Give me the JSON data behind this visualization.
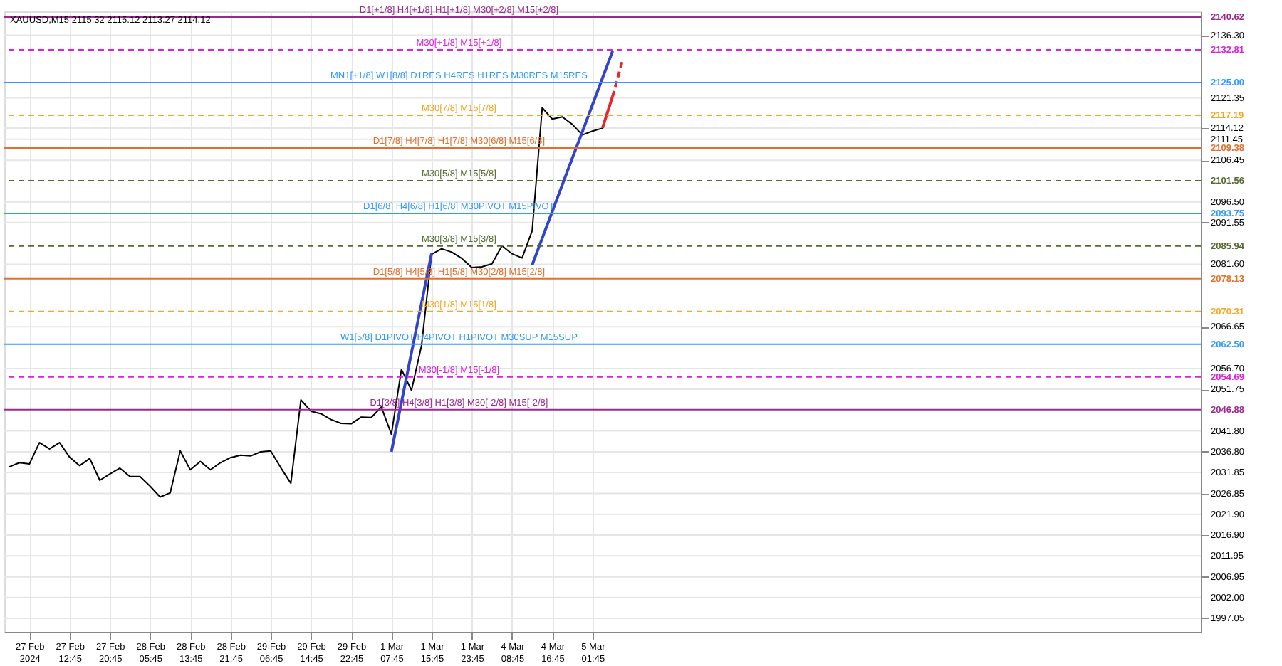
{
  "chart_data": {
    "type": "line",
    "title": "XAUUSD,M15  2115.32 2115.12 2113.27 2114.12",
    "categories": [
      null,
      null,
      "27 Feb 2024",
      null,
      null,
      null,
      "27 Feb 12:45",
      null,
      null,
      null,
      "27 Feb 20:45",
      null,
      null,
      null,
      "28 Feb 05:45",
      null,
      null,
      null,
      "28 Feb 13:45",
      null,
      null,
      null,
      "28 Feb 21:45",
      null,
      null,
      null,
      "29 Feb 06:45",
      null,
      null,
      null,
      "29 Feb 14:45",
      null,
      null,
      null,
      "29 Feb 22:45",
      null,
      null,
      null,
      "1 Mar 07:45",
      null,
      null,
      null,
      "1 Mar 15:45",
      null,
      null,
      null,
      "1 Mar 23:45",
      null,
      null,
      null,
      "4 Mar 08:45",
      null,
      null,
      null,
      "4 Mar 16:45",
      null,
      null,
      null,
      "5 Mar 01:45",
      null,
      null,
      null,
      null,
      null,
      null,
      null,
      null,
      null,
      null,
      null,
      null,
      null,
      null,
      null,
      null,
      null,
      null,
      null,
      null,
      null,
      null,
      null,
      null,
      null,
      null,
      null,
      null,
      null,
      null,
      null,
      null,
      null,
      null,
      null,
      null,
      null,
      null,
      null,
      null,
      null,
      null,
      null,
      null,
      null,
      null,
      null,
      null,
      null,
      null,
      null,
      null,
      null,
      null,
      null,
      null,
      null,
      null,
      null,
      null
    ],
    "ylim": [
      1993.8,
      2142.0
    ],
    "annotations": [
      "2140.62",
      "2132.81",
      "2125.00",
      "2117.19",
      "2109.38",
      "2101.56",
      "2093.75",
      "2085.94",
      "2078.13",
      "2070.31",
      "2062.50",
      "2054.69",
      "2046.88"
    ],
    "yticks": [
      {
        "value": 2136.3,
        "label": "2136.30"
      },
      2121.35,
      {
        "value": 2114.12,
        "label": "2114.12"
      },
      2111.45,
      2106.45,
      {
        "value": 2096.5,
        "label": "2096.50"
      },
      2091.55,
      {
        "value": 2081.6,
        "label": "2081.60"
      },
      2066.65,
      {
        "value": 2056.7,
        "label": "2056.70"
      },
      2051.75,
      {
        "value": 2041.8,
        "label": "2041.80"
      },
      {
        "value": 2036.8,
        "label": "2036.80"
      },
      2031.85,
      2026.85,
      {
        "value": 2021.9,
        "label": "2021.90"
      },
      {
        "value": 2016.9,
        "label": "2016.90"
      },
      2011.95,
      2006.95,
      {
        "value": 2002,
        "label": "2002.00"
      },
      1997.05
    ],
    "grid": true,
    "series": [
      {
        "color": "#000000",
        "values": [
          2033.2,
          2034.2,
          2033.9,
          2039.0,
          2037.5,
          2039.0,
          2035.5,
          2033.5,
          2035.2,
          2030.0,
          2031.5,
          2032.9,
          2030.9,
          2030.9,
          2028.6,
          2026.0,
          2027.0,
          2037.0,
          2032.5,
          2034.5,
          2032.5,
          2034.2,
          2035.4,
          2036.0,
          2035.8,
          2036.8,
          2037.0,
          2033.0,
          2029.3,
          2049.2,
          2046.5,
          2045.9,
          2044.5,
          2043.6,
          2043.5,
          2045.1,
          2045.0,
          2047.5,
          2041.0,
          2056.5,
          2051.5,
          2062.2,
          2084.0,
          2085.3,
          2084.5,
          2083.0,
          2080.8,
          2081.0,
          2081.7,
          2086.0,
          2084.1,
          2083.1,
          2089.6,
          2119.0,
          2116.3,
          2116.8,
          2115.0,
          2112.5,
          2113.4,
          2114.1,
          null,
          null,
          null,
          null,
          null,
          null,
          null,
          null,
          null,
          null,
          null,
          null,
          null,
          null,
          null,
          null,
          null,
          null,
          null,
          null,
          null,
          null,
          null,
          null,
          null,
          null,
          null,
          null,
          null,
          null,
          null,
          null,
          null,
          null,
          null,
          null,
          null,
          null,
          null,
          null,
          null,
          null,
          null,
          null,
          null,
          null,
          null,
          null,
          null,
          null,
          null,
          null,
          null,
          null,
          null,
          null,
          null,
          null,
          null
        ]
      },
      {
        "color": "#3344cc",
        "values": [
          null,
          null,
          null,
          null,
          null,
          null,
          null,
          null,
          null,
          null,
          null,
          null,
          null,
          null,
          null,
          null,
          null,
          null,
          null,
          null,
          null,
          null,
          null,
          null,
          null,
          null,
          null,
          null,
          null,
          null,
          null,
          null,
          null,
          null,
          null,
          null,
          null,
          null,
          2036.8,
          2048.6,
          2060.5,
          2072.3,
          2084.2,
          null,
          null,
          null,
          null,
          null,
          null,
          null,
          null,
          null,
          null,
          null,
          null,
          null,
          null,
          null,
          null,
          null,
          null,
          null,
          null,
          null,
          null,
          null,
          null,
          null,
          null,
          null,
          null,
          null,
          null,
          null,
          null,
          null,
          null,
          null,
          null,
          null,
          null,
          null,
          null,
          null,
          null,
          null,
          null,
          null,
          null,
          null,
          null,
          null,
          null,
          null,
          null,
          null,
          null,
          null,
          null,
          null,
          null,
          null,
          null,
          null,
          null,
          null,
          null,
          null,
          null,
          null,
          null,
          null,
          null,
          null,
          null,
          null,
          null,
          null,
          null
        ]
      },
      {
        "color": "#3344cc",
        "values": [
          null,
          null,
          null,
          null,
          null,
          null,
          null,
          null,
          null,
          null,
          null,
          null,
          null,
          null,
          null,
          null,
          null,
          null,
          null,
          null,
          null,
          null,
          null,
          null,
          null,
          null,
          null,
          null,
          null,
          null,
          null,
          null,
          null,
          null,
          null,
          null,
          null,
          null,
          null,
          null,
          null,
          null,
          null,
          null,
          null,
          null,
          null,
          null,
          null,
          null,
          null,
          null,
          2081.4,
          2087.8,
          2094.2,
          2100.6,
          2107.0,
          2113.3,
          2119.7,
          2126.1,
          2132.5,
          null,
          null,
          null,
          null,
          null,
          null,
          null,
          null,
          null,
          null,
          null,
          null,
          null,
          null,
          null,
          null,
          null,
          null,
          null,
          null,
          null,
          null,
          null,
          null,
          null,
          null,
          null,
          null,
          null,
          null,
          null,
          null,
          null,
          null,
          null,
          null,
          null,
          null,
          null,
          null,
          null,
          null,
          null,
          null,
          null,
          null,
          null,
          null,
          null,
          null,
          null,
          null,
          null,
          null,
          null,
          null,
          null,
          null
        ]
      },
      {
        "color": "#e8262b",
        "values": [
          null,
          null,
          null,
          null,
          null,
          null,
          null,
          null,
          null,
          null,
          null,
          null,
          null,
          null,
          null,
          null,
          null,
          null,
          null,
          null,
          null,
          null,
          null,
          null,
          null,
          null,
          null,
          null,
          null,
          null,
          null,
          null,
          null,
          null,
          null,
          null,
          null,
          null,
          null,
          null,
          null,
          null,
          null,
          null,
          null,
          null,
          null,
          null,
          null,
          null,
          null,
          null,
          null,
          null,
          null,
          null,
          null,
          null,
          null,
          2114.2,
          2121.7,
          null,
          null,
          null,
          null,
          null,
          null,
          null,
          null,
          null,
          null,
          null,
          null,
          null,
          null,
          null,
          null,
          null,
          null,
          null,
          null,
          null,
          null,
          null,
          null,
          null,
          null,
          null,
          null,
          null,
          null,
          null,
          null,
          null,
          null,
          null,
          null,
          null,
          null,
          null,
          null,
          null,
          null,
          null,
          null,
          null,
          null,
          null,
          null,
          null,
          null,
          null,
          null,
          null,
          null,
          null,
          null,
          null,
          null
        ]
      },
      {
        "color": "#e8262b",
        "line_style": "dashed",
        "values": [
          null,
          null,
          null,
          null,
          null,
          null,
          null,
          null,
          null,
          null,
          null,
          null,
          null,
          null,
          null,
          null,
          null,
          null,
          null,
          null,
          null,
          null,
          null,
          null,
          null,
          null,
          null,
          null,
          null,
          null,
          null,
          null,
          null,
          null,
          null,
          null,
          null,
          null,
          null,
          null,
          null,
          null,
          null,
          null,
          null,
          null,
          null,
          null,
          null,
          null,
          null,
          null,
          null,
          null,
          null,
          null,
          null,
          null,
          null,
          null,
          2121.7,
          2130.4,
          null,
          null,
          null,
          null,
          null,
          null,
          null,
          null,
          null,
          null,
          null,
          null,
          null,
          null,
          null,
          null,
          null,
          null,
          null,
          null,
          null,
          null,
          null,
          null,
          null,
          null,
          null,
          null,
          null,
          null,
          null,
          null,
          null,
          null,
          null,
          null,
          null,
          null,
          null,
          null,
          null,
          null,
          null,
          null,
          null,
          null,
          null,
          null,
          null,
          null,
          null,
          null,
          null,
          null,
          null,
          null,
          null
        ]
      }
    ],
    "ref_lines": [
      {
        "axis": "y",
        "value": 2140.62,
        "label": "D1[+1/8] H4[+1/8] H1[+1/8] M30[+2/8] M15[+2/8]",
        "color": "#9c2a8c",
        "line_style": "solid"
      },
      {
        "axis": "y",
        "value": 2132.81,
        "label": "M30[+1/8] M15[+1/8]",
        "color": "#e020e0",
        "line_style": "dashed"
      },
      {
        "axis": "y",
        "value": 2125.0,
        "label": "MN1[+1/8] W1[8/8] D1RES H4RES H1RES M30RES M15RES",
        "color": "#3399ff",
        "line_style": "solid"
      },
      {
        "axis": "y",
        "value": 2117.19,
        "label": "M30[7/8] M15[7/8]",
        "color": "#f5a623",
        "line_style": "dashed"
      },
      {
        "axis": "y",
        "value": 2109.38,
        "label": "D1[7/8] H4[7/8] H1[7/8] M30[6/8] M15[6/8]",
        "color": "#e07030",
        "line_style": "solid"
      },
      {
        "axis": "y",
        "value": 2101.56,
        "label": "M30[5/8] M15[5/8]",
        "color": "#556b2f",
        "line_style": "dashed"
      },
      {
        "axis": "y",
        "value": 2093.75,
        "label": "D1[6/8] H4[6/8] H1[6/8] M30PIVOT M15PIVOT",
        "color": "#3399ff",
        "line_style": "solid"
      },
      {
        "axis": "y",
        "value": 2085.94,
        "label": "M30[3/8] M15[3/8]",
        "color": "#556b2f",
        "line_style": "dashed"
      },
      {
        "axis": "y",
        "value": 2078.13,
        "label": "D1[5/8] H4[5/8] H1[5/8] M30[2/8] M15[2/8]",
        "color": "#e07030",
        "line_style": "solid"
      },
      {
        "axis": "y",
        "value": 2070.31,
        "label": "M30[1/8] M15[1/8]",
        "color": "#f5a623",
        "line_style": "dashed"
      },
      {
        "axis": "y",
        "value": 2062.5,
        "label": "W1[5/8] D1PIVOT H4PIVOT H1PIVOT M30SUP M15SUP",
        "color": "#3399ff",
        "line_style": "solid"
      },
      {
        "axis": "y",
        "value": 2054.69,
        "label": "M30[-1/8] M15[-1/8]",
        "color": "#e020e0",
        "line_style": "dashed"
      },
      {
        "axis": "y",
        "value": 2046.88,
        "label": "D1[3/8] H4[3/8] H1[3/8] M30[-2/8] M15[-2/8]",
        "color": "#9c2a8c",
        "line_style": "solid"
      }
    ]
  }
}
